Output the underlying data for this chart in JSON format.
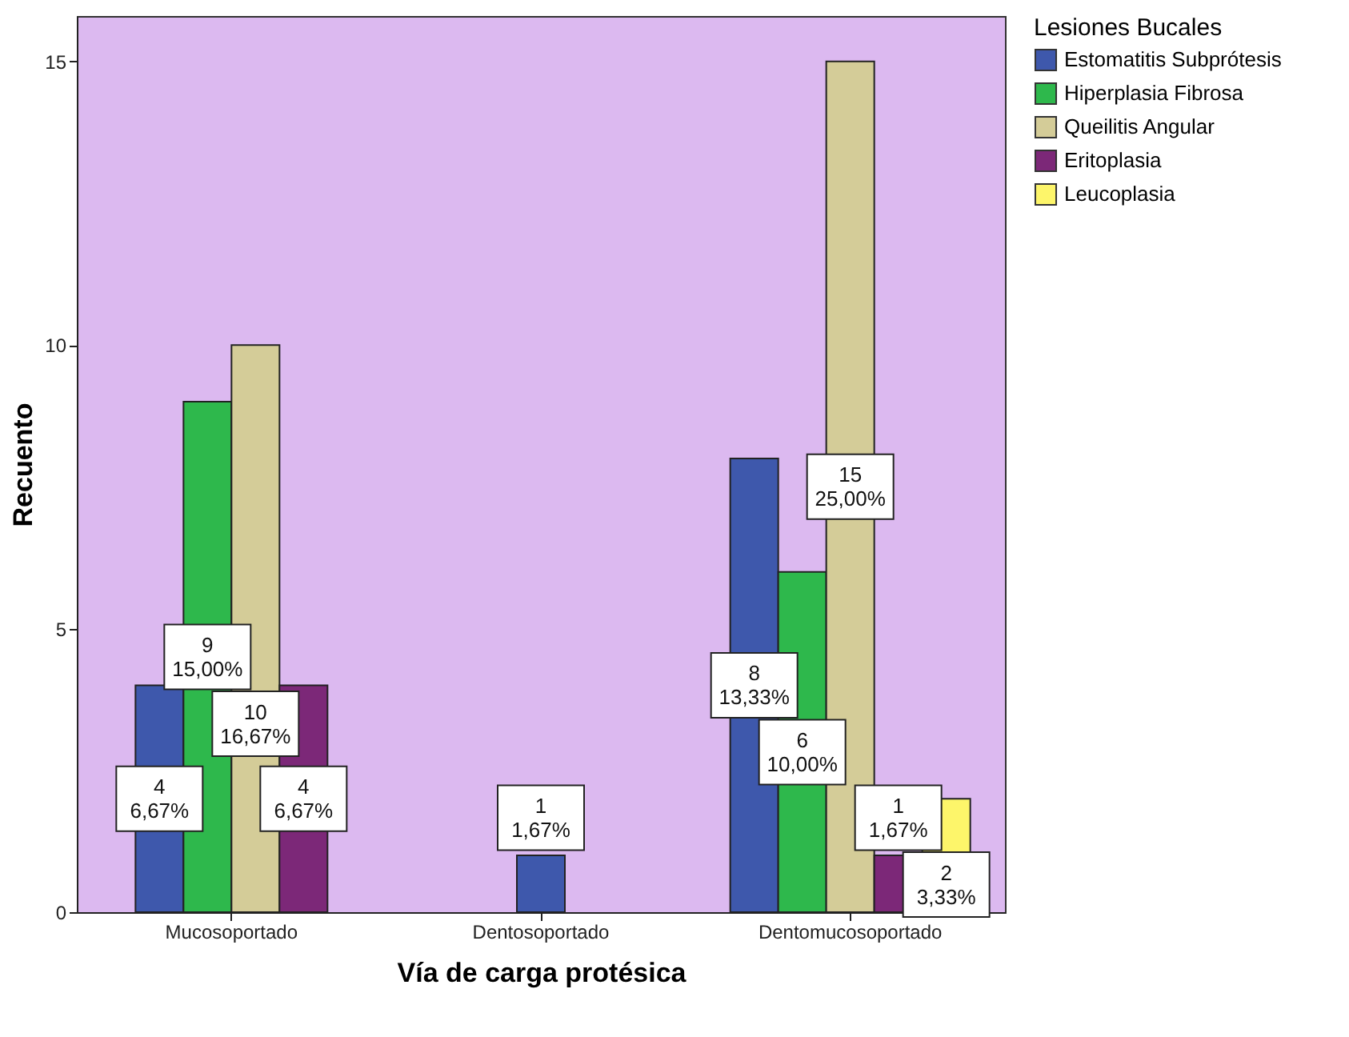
{
  "chart_data": {
    "type": "bar",
    "xlabel": "Vía de carga protésica",
    "ylabel": "Recuento",
    "legend_title": "Lesiones Bucales",
    "legend": "top right",
    "grid": false,
    "categories": [
      "Mucosoportado",
      "Dentosoportado",
      "Dentomucosoportado"
    ],
    "ylim": [
      0,
      15.8
    ],
    "yticks": [
      0,
      5,
      10,
      15
    ],
    "series": [
      {
        "name": "Estomatitis Subprótesis",
        "color": "#3e58ac",
        "values": [
          4,
          1,
          8
        ],
        "value_labels": [
          "4\n6,67%",
          "1\n1,67%",
          "8\n13,33%"
        ]
      },
      {
        "name": "Hiperplasia Fibrosa",
        "color": "#2eb84c",
        "values": [
          9,
          null,
          6
        ],
        "value_labels": [
          "9\n15,00%",
          null,
          "6\n10,00%"
        ]
      },
      {
        "name": "Queilitis Angular",
        "color": "#d4cc98",
        "values": [
          10,
          null,
          15
        ],
        "value_labels": [
          "10\n16,67%",
          null,
          "15\n25,00%"
        ]
      },
      {
        "name": "Eritoplasia",
        "color": "#7c2878",
        "values": [
          4,
          null,
          1
        ],
        "value_labels": [
          "4\n6,67%",
          null,
          "1\n1,67%"
        ]
      },
      {
        "name": "Leucoplasia",
        "color": "#fdf56a",
        "values": [
          null,
          null,
          2
        ],
        "value_labels": [
          null,
          null,
          "2\n3,33%"
        ]
      }
    ]
  }
}
